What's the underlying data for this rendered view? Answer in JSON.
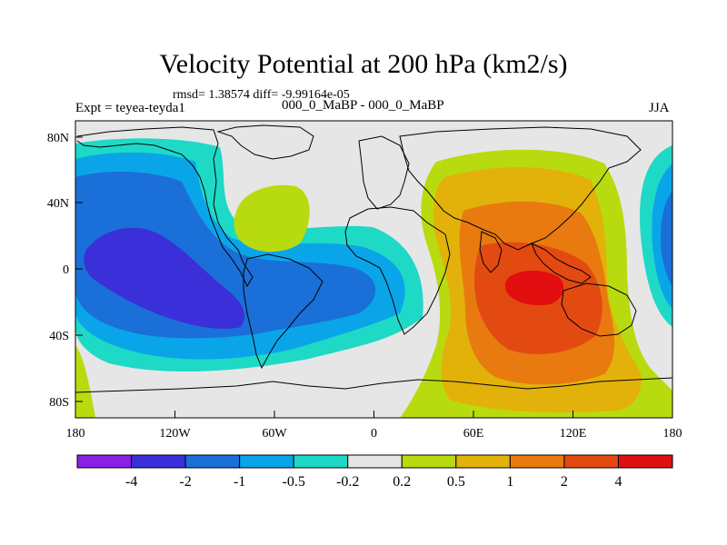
{
  "title": "Velocity Potential at 200 hPa (km2/s)",
  "stats": "rmsd= 1.38574 diff= -9.99164e-05",
  "expt": "Expt = teyea-teyda1",
  "subtitle": "000_0_MaBP - 000_0_MaBP",
  "season": "JJA",
  "x_ticks": [
    "180",
    "120W",
    "60W",
    "0",
    "60E",
    "120E",
    "180"
  ],
  "y_ticks": [
    "80N",
    "40N",
    "0",
    "40S",
    "80S"
  ],
  "colorbar": {
    "labels": [
      "-4",
      "-2",
      "-1",
      "-0.5",
      "-0.2",
      "0.2",
      "0.5",
      "1",
      "2",
      "4"
    ],
    "colors": [
      "#8a1fe6",
      "#3a2fd8",
      "#1a6fd8",
      "#0aa5e8",
      "#1ed9c6",
      "#e6e6e6",
      "#b8db10",
      "#e2b20a",
      "#e87a10",
      "#e34a12",
      "#e10f0f"
    ]
  }
}
